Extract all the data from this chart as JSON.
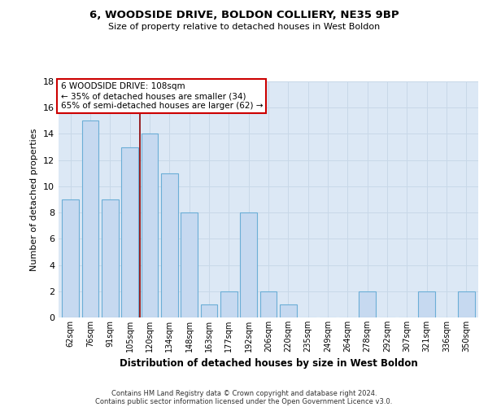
{
  "title_line1": "6, WOODSIDE DRIVE, BOLDON COLLIERY, NE35 9BP",
  "title_line2": "Size of property relative to detached houses in West Boldon",
  "xlabel": "Distribution of detached houses by size in West Boldon",
  "ylabel": "Number of detached properties",
  "categories": [
    "62sqm",
    "76sqm",
    "91sqm",
    "105sqm",
    "120sqm",
    "134sqm",
    "148sqm",
    "163sqm",
    "177sqm",
    "192sqm",
    "206sqm",
    "220sqm",
    "235sqm",
    "249sqm",
    "264sqm",
    "278sqm",
    "292sqm",
    "307sqm",
    "321sqm",
    "336sqm",
    "350sqm"
  ],
  "values": [
    9,
    15,
    9,
    13,
    14,
    11,
    8,
    1,
    2,
    8,
    2,
    1,
    0,
    0,
    0,
    2,
    0,
    0,
    2,
    0,
    2
  ],
  "bar_color": "#c6d9f0",
  "bar_edge_color": "#6baed6",
  "red_line_x": 3.5,
  "annotation_text_line1": "6 WOODSIDE DRIVE: 108sqm",
  "annotation_text_line2": "← 35% of detached houses are smaller (34)",
  "annotation_text_line3": "65% of semi-detached houses are larger (62) →",
  "annotation_box_color": "#ffffff",
  "annotation_box_edge": "#cc0000",
  "ylim": [
    0,
    18
  ],
  "yticks": [
    0,
    2,
    4,
    6,
    8,
    10,
    12,
    14,
    16,
    18
  ],
  "grid_color": "#c8d8e8",
  "background_color": "#dce8f5",
  "footnote1": "Contains HM Land Registry data © Crown copyright and database right 2024.",
  "footnote2": "Contains public sector information licensed under the Open Government Licence v3.0."
}
